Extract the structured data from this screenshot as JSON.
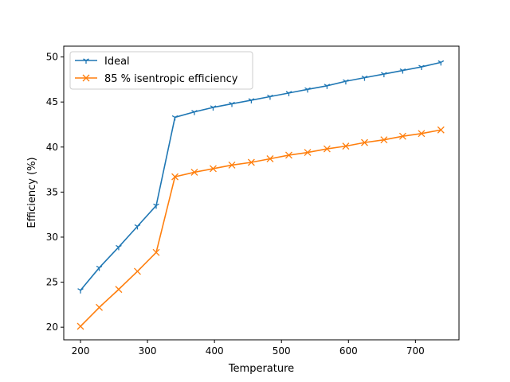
{
  "chart_data": {
    "type": "line",
    "title": "",
    "xlabel": "Temperature",
    "ylabel": "Efficiency (%)",
    "xlim": [
      175,
      765
    ],
    "ylim": [
      18.6,
      51.2
    ],
    "xticks": [
      200,
      300,
      400,
      500,
      600,
      700
    ],
    "yticks": [
      20,
      25,
      30,
      35,
      40,
      45,
      50
    ],
    "grid": false,
    "legend_position": "upper-left",
    "x": [
      200,
      228,
      257,
      285,
      313,
      341,
      370,
      398,
      426,
      455,
      483,
      511,
      539,
      568,
      596,
      624,
      653,
      681,
      709,
      738
    ],
    "series": [
      {
        "name": "Ideal",
        "color": "#1f77b4",
        "marker": "tri_down",
        "values": [
          24.1,
          26.6,
          28.9,
          31.2,
          33.5,
          43.3,
          43.9,
          44.4,
          44.8,
          45.2,
          45.6,
          46.0,
          46.4,
          46.8,
          47.3,
          47.7,
          48.1,
          48.5,
          48.9,
          49.4
        ]
      },
      {
        "name": "85 % isentropic efficiency",
        "color": "#ff7f0e",
        "marker": "x",
        "values": [
          20.1,
          22.2,
          24.2,
          26.2,
          28.3,
          36.7,
          37.2,
          37.6,
          38.0,
          38.3,
          38.7,
          39.1,
          39.4,
          39.8,
          40.1,
          40.5,
          40.8,
          41.2,
          41.5,
          41.9
        ]
      }
    ]
  }
}
